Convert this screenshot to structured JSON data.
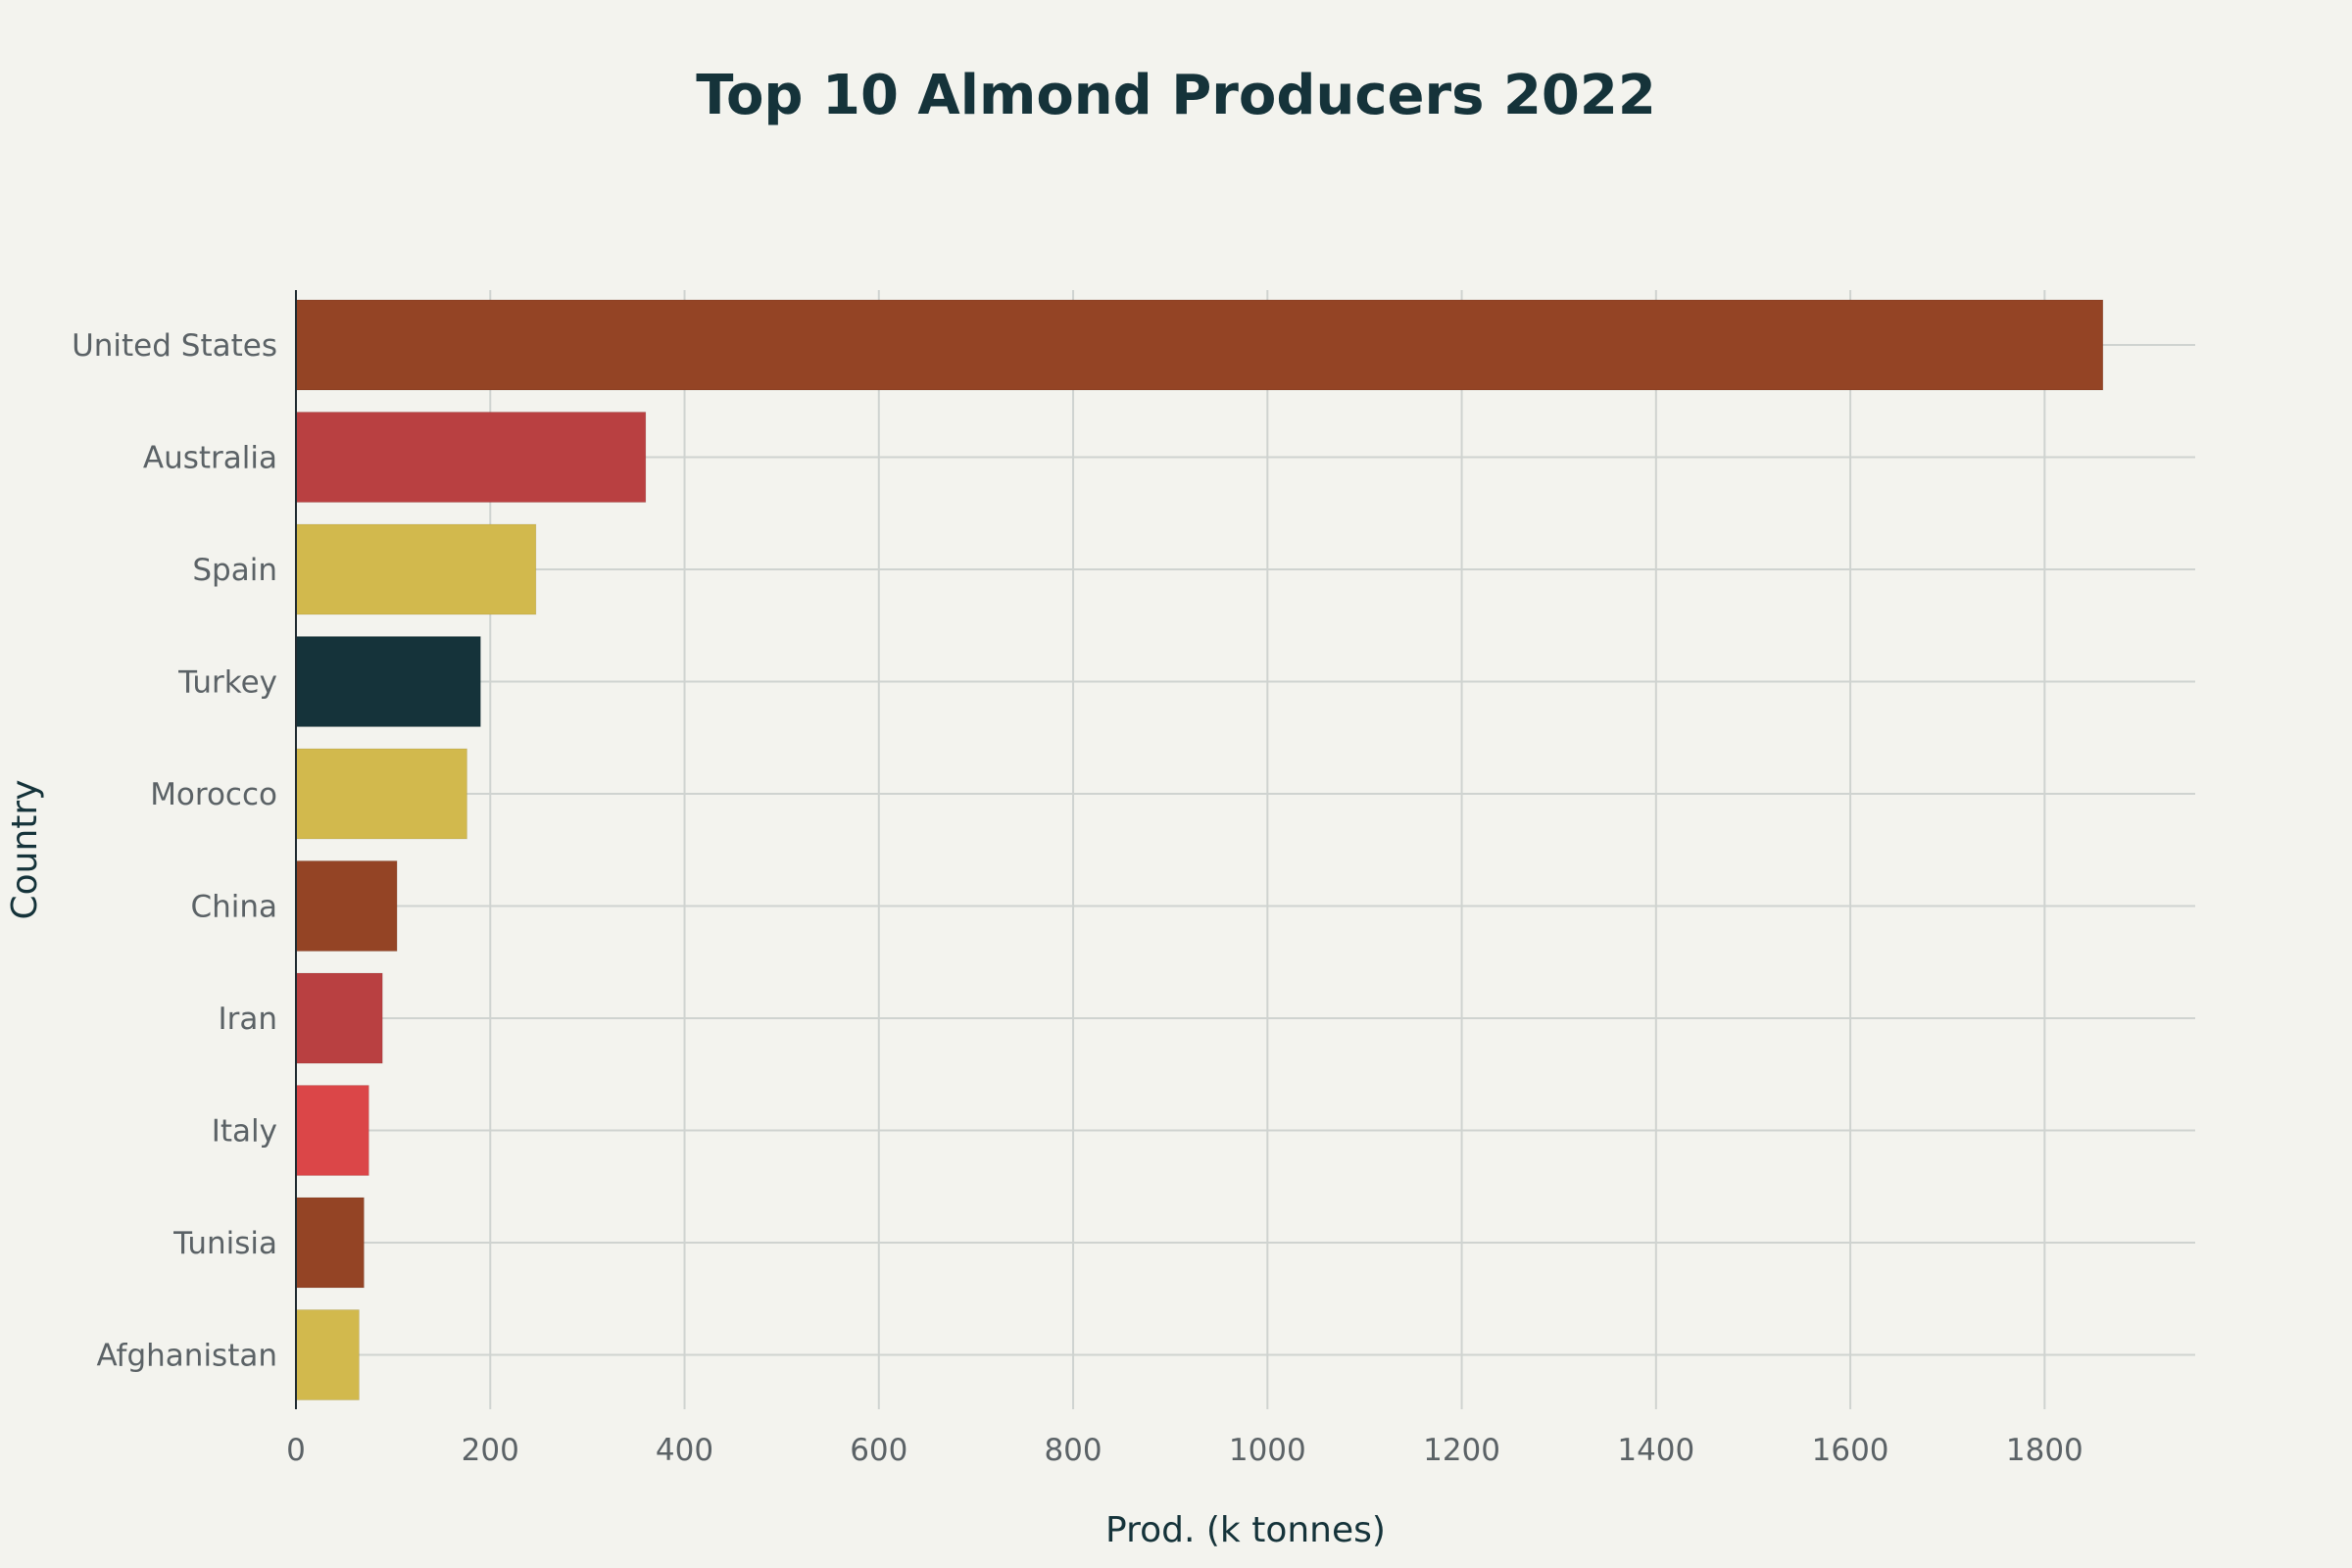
{
  "chart_data": {
    "type": "bar",
    "orientation": "horizontal",
    "title": "Top 10 Almond Producers 2022",
    "xlabel": "Prod. (k tonnes)",
    "ylabel": "Country",
    "xlim": [
      0,
      1955
    ],
    "xticks": [
      0,
      200,
      400,
      600,
      800,
      1000,
      1200,
      1400,
      1600,
      1800
    ],
    "categories": [
      "United States",
      "Australia",
      "Spain",
      "Turkey",
      "Morocco",
      "China",
      "Iran",
      "Italy",
      "Tunisia",
      "Afghanistan"
    ],
    "values": [
      1860,
      360,
      247,
      190,
      176,
      104,
      89,
      75,
      70,
      65
    ],
    "colors": [
      "#944425",
      "#b94041",
      "#d2b94d",
      "#15333a",
      "#d2b94d",
      "#944425",
      "#b94041",
      "#db4648",
      "#944425",
      "#d2b94d"
    ],
    "grid": true,
    "legend": "none"
  }
}
